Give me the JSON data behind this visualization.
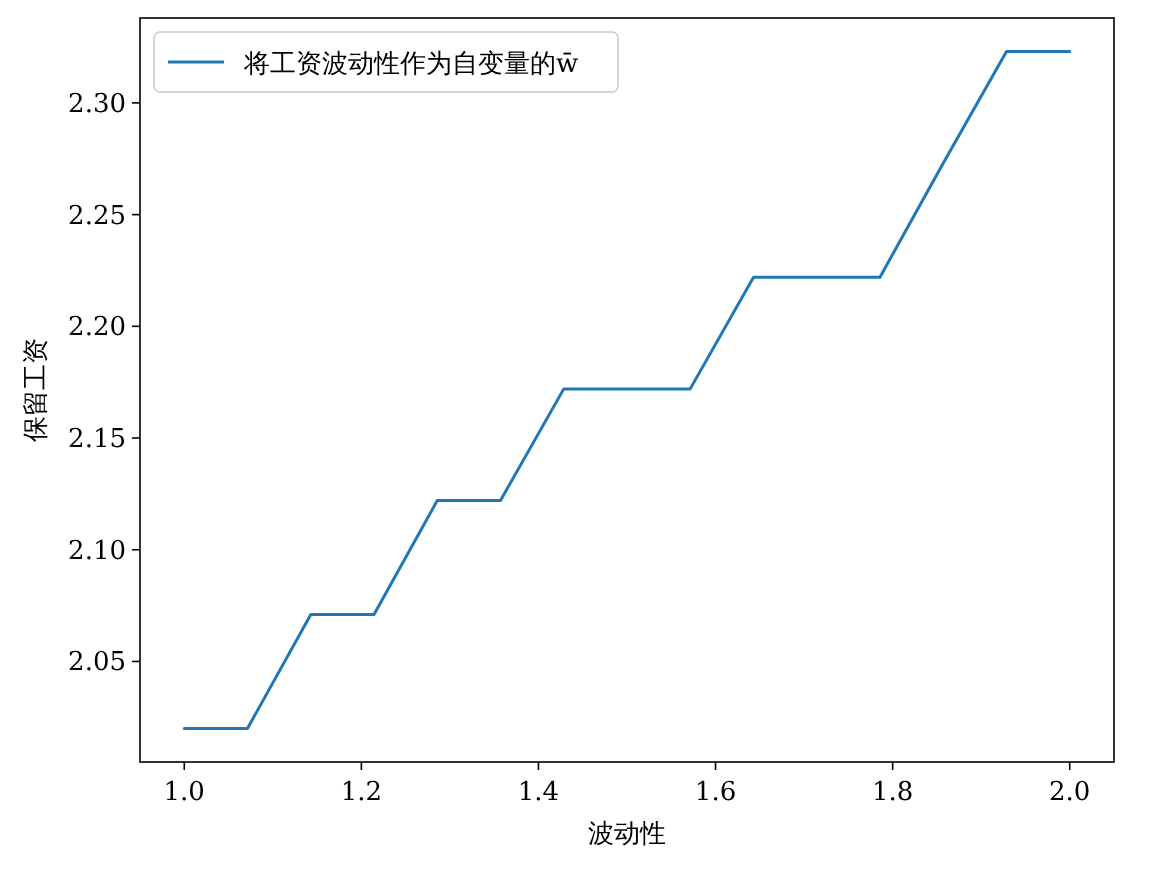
{
  "chart_data": {
    "type": "line",
    "xlabel": "波动性",
    "ylabel": "保留工资",
    "x": [
      1.0,
      1.0714,
      1.1429,
      1.2143,
      1.2857,
      1.3571,
      1.4286,
      1.5,
      1.5714,
      1.6429,
      1.7143,
      1.7857,
      1.8571,
      1.9286,
      2.0
    ],
    "series": [
      {
        "name": "将工资波动性作为自变量的w̄",
        "color": "#1f77b4",
        "values": [
          2.02,
          2.02,
          2.071,
          2.071,
          2.122,
          2.122,
          2.172,
          2.172,
          2.172,
          2.222,
          2.222,
          2.222,
          2.273,
          2.323,
          2.323
        ]
      }
    ],
    "xlim": [
      0.95,
      2.05
    ],
    "ylim": [
      2.005,
      2.338
    ],
    "xticks": [
      {
        "value": 1.0,
        "label": "1.0"
      },
      {
        "value": 1.2,
        "label": "1.2"
      },
      {
        "value": 1.4,
        "label": "1.4"
      },
      {
        "value": 1.6,
        "label": "1.6"
      },
      {
        "value": 1.8,
        "label": "1.8"
      },
      {
        "value": 2.0,
        "label": "2.0"
      }
    ],
    "yticks": [
      {
        "value": 2.05,
        "label": "2.05"
      },
      {
        "value": 2.1,
        "label": "2.10"
      },
      {
        "value": 2.15,
        "label": "2.15"
      },
      {
        "value": 2.2,
        "label": "2.20"
      },
      {
        "value": 2.25,
        "label": "2.25"
      },
      {
        "value": 2.3,
        "label": "2.30"
      }
    ],
    "legend": "top left",
    "grid": false,
    "marker": "none",
    "line_style": "solid"
  }
}
